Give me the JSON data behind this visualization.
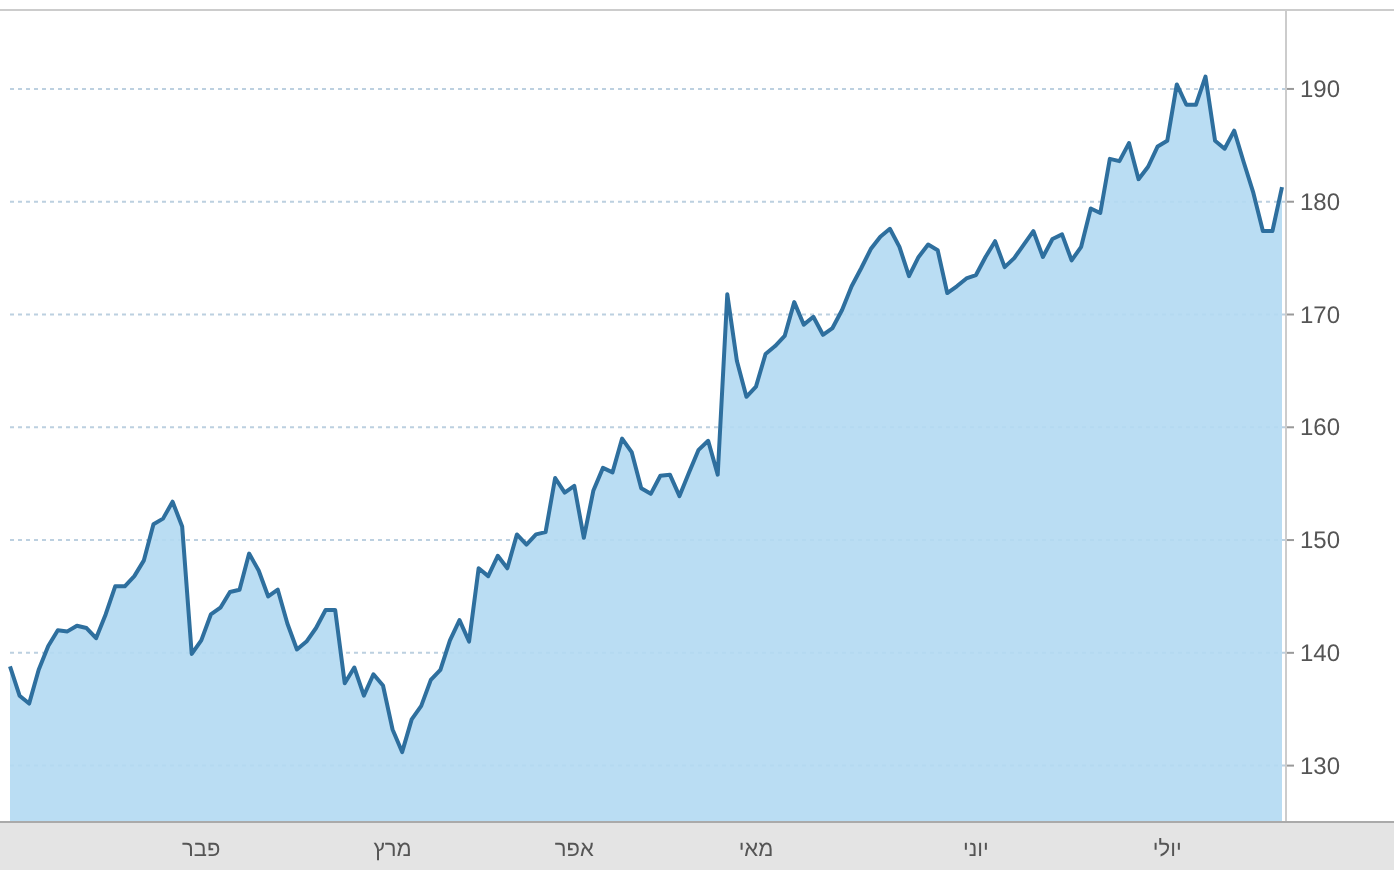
{
  "chart_data": {
    "type": "area",
    "categories": [
      null,
      null,
      null,
      null,
      null,
      null,
      null,
      null,
      null,
      null,
      null,
      null,
      null,
      null,
      null,
      null,
      null,
      null,
      null,
      null,
      "פבר",
      null,
      null,
      null,
      null,
      null,
      null,
      null,
      null,
      null,
      null,
      null,
      null,
      null,
      null,
      null,
      null,
      null,
      null,
      null,
      "מרץ",
      null,
      null,
      null,
      null,
      null,
      null,
      null,
      null,
      null,
      null,
      null,
      null,
      null,
      null,
      null,
      null,
      null,
      null,
      "אפר",
      null,
      null,
      null,
      null,
      null,
      null,
      null,
      null,
      null,
      null,
      null,
      null,
      null,
      null,
      null,
      null,
      null,
      null,
      "מאי",
      null,
      null,
      null,
      null,
      null,
      null,
      null,
      null,
      null,
      null,
      null,
      null,
      null,
      null,
      null,
      null,
      null,
      null,
      null,
      null,
      null,
      null,
      "יוני",
      null,
      null,
      null,
      null,
      null,
      null,
      null,
      null,
      null,
      null,
      null,
      null,
      null,
      null,
      null,
      null,
      null,
      null,
      null,
      "יולי",
      null,
      null,
      null,
      null,
      null,
      null,
      null,
      null,
      null,
      null,
      null,
      null
    ],
    "series": [
      {
        "color": "#2e6f9e",
        "values": [
          138.8,
          136.2,
          135.5,
          138.5,
          140.6,
          142.0,
          141.9,
          142.4,
          142.2,
          141.3,
          143.4,
          145.9,
          145.9,
          146.8,
          148.2,
          151.4,
          151.9,
          153.4,
          151.2,
          139.9,
          141.1,
          143.4,
          144.0,
          145.4,
          145.6,
          148.8,
          147.3,
          145.0,
          145.6,
          142.6,
          140.3,
          141.0,
          142.2,
          143.8,
          143.8,
          137.3,
          138.7,
          136.2,
          138.1,
          137.1,
          133.2,
          131.2,
          134.1,
          135.3,
          137.6,
          138.5,
          141.1,
          142.9,
          141.0,
          147.5,
          146.8,
          148.6,
          147.5,
          150.5,
          149.6,
          150.5,
          150.7,
          155.5,
          154.2,
          154.8,
          150.2,
          154.4,
          156.4,
          156.0,
          159.0,
          157.8,
          154.6,
          154.1,
          155.7,
          155.8,
          153.9,
          156.0,
          158.0,
          158.8,
          155.8,
          171.8,
          165.9,
          162.7,
          163.6,
          166.5,
          167.2,
          168.1,
          171.1,
          169.1,
          169.8,
          168.2,
          168.8,
          170.4,
          172.5,
          174.1,
          175.8,
          176.9,
          177.6,
          176.0,
          173.4,
          175.1,
          176.2,
          175.7,
          171.9,
          172.5,
          173.2,
          173.5,
          175.1,
          176.5,
          174.2,
          175.0,
          176.2,
          177.4,
          175.1,
          176.7,
          177.1,
          174.8,
          176.0,
          179.4,
          179.0,
          183.8,
          183.6,
          185.2,
          182.0,
          183.1,
          184.9,
          185.4,
          190.4,
          188.6,
          188.6,
          191.1,
          185.4,
          184.7,
          186.3,
          183.5,
          180.8,
          177.4,
          177.4,
          181.3
        ]
      }
    ],
    "ylim": [
      125,
      197
    ],
    "yticks": [
      130,
      140,
      150,
      160,
      170,
      180,
      190
    ],
    "grid": "y",
    "marker": "none",
    "line_style": "solid"
  }
}
